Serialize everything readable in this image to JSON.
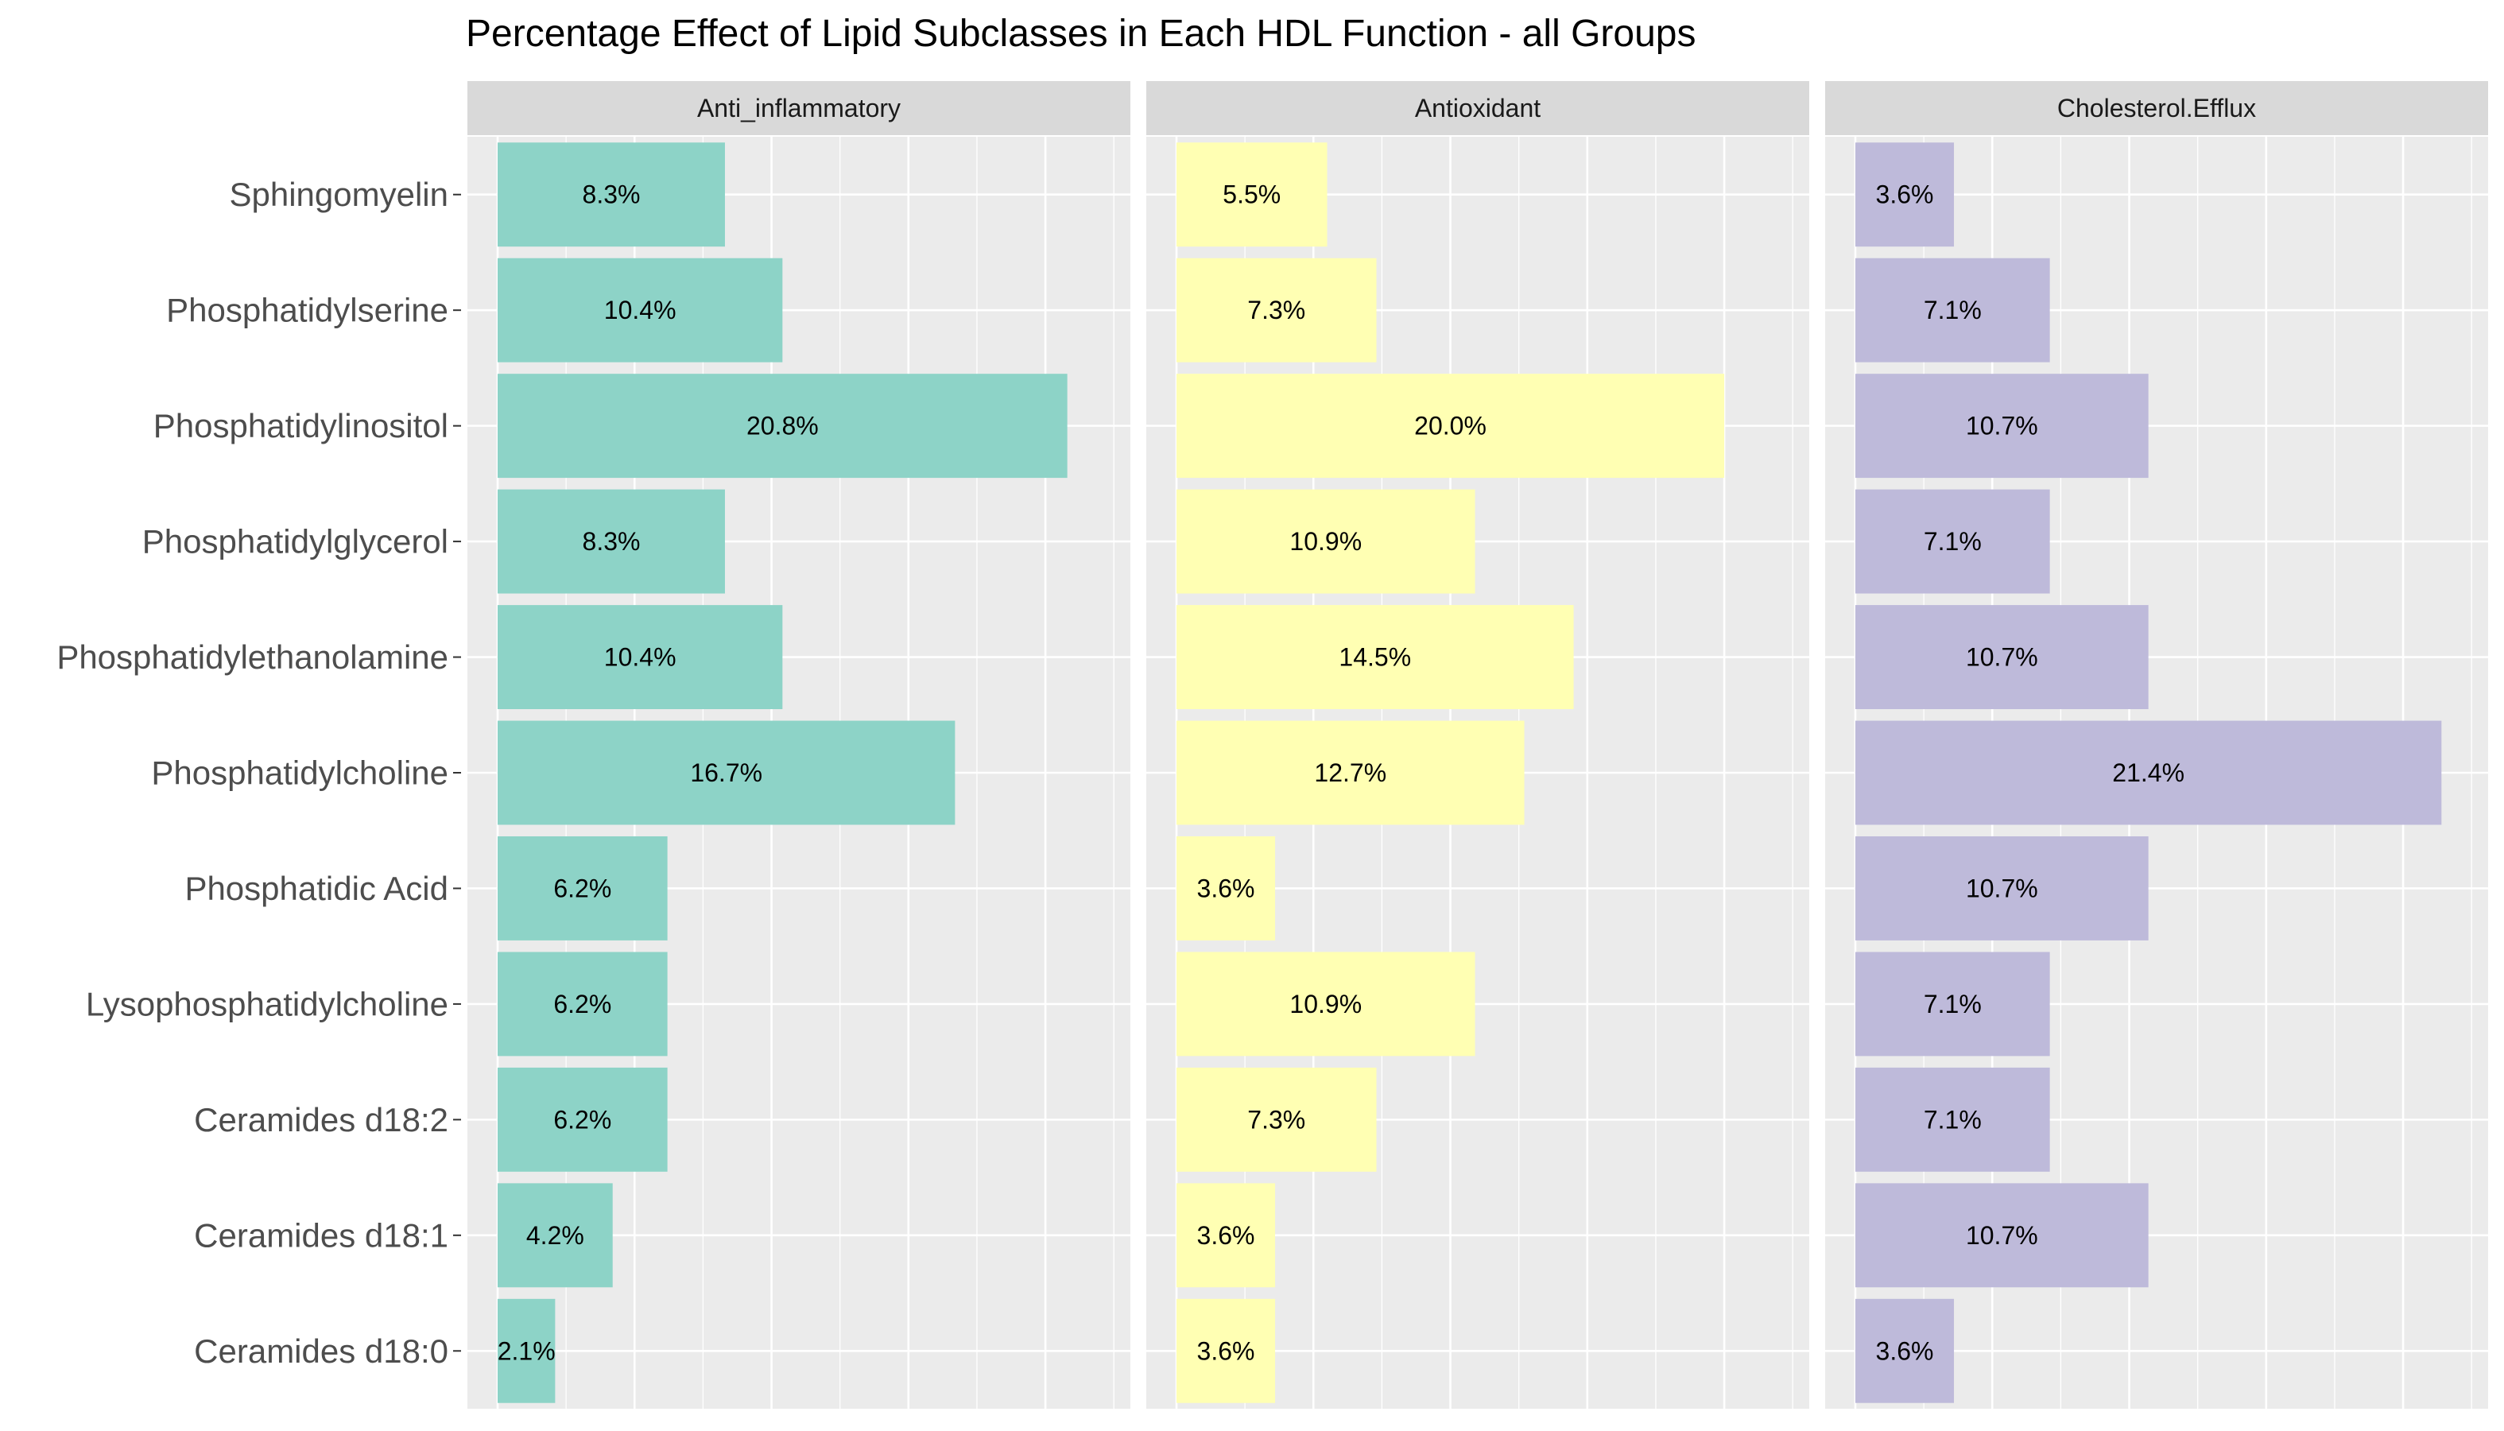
{
  "chart_data": {
    "type": "bar",
    "orientation": "horizontal",
    "title": "Percentage Effect of Lipid Subclasses in Each HDL Function - all Groups",
    "categories": [
      "Sphingomyelin",
      "Phosphatidylserine",
      "Phosphatidylinositol",
      "Phosphatidylglycerol",
      "Phosphatidylethanolamine",
      "Phosphatidylcholine",
      "Phosphatidic Acid",
      "Lysophosphatidylcholine",
      "Ceramides d18:2",
      "Ceramides d18:1",
      "Ceramides d18:0"
    ],
    "panel_background": "#ebebeb",
    "strip_background": "#d9d9d9",
    "grid": true,
    "legend": "none",
    "xlim": [
      0,
      22
    ],
    "facets": [
      {
        "name": "Anti_inflammatory",
        "color": "#8dd3c7",
        "values": [
          8.3,
          10.4,
          20.8,
          8.3,
          10.4,
          16.7,
          6.2,
          6.2,
          6.2,
          4.2,
          2.1
        ],
        "labels": [
          "8.3%",
          "10.4%",
          "20.8%",
          "8.3%",
          "10.4%",
          "16.7%",
          "6.2%",
          "6.2%",
          "6.2%",
          "4.2%",
          "2.1%"
        ]
      },
      {
        "name": "Antioxidant",
        "color": "#ffffb3",
        "values": [
          5.5,
          7.3,
          20.0,
          10.9,
          14.5,
          12.7,
          3.6,
          10.9,
          7.3,
          3.6,
          3.6
        ],
        "labels": [
          "5.5%",
          "7.3%",
          "20.0%",
          "10.9%",
          "14.5%",
          "12.7%",
          "3.6%",
          "10.9%",
          "7.3%",
          "3.6%",
          "3.6%"
        ]
      },
      {
        "name": "Cholesterol.Efflux",
        "color": "#bebada",
        "values": [
          3.6,
          7.1,
          10.7,
          7.1,
          10.7,
          21.4,
          10.7,
          7.1,
          7.1,
          10.7,
          3.6
        ],
        "labels": [
          "3.6%",
          "7.1%",
          "10.7%",
          "7.1%",
          "10.7%",
          "21.4%",
          "10.7%",
          "7.1%",
          "7.1%",
          "10.7%",
          "3.6%"
        ]
      }
    ]
  }
}
